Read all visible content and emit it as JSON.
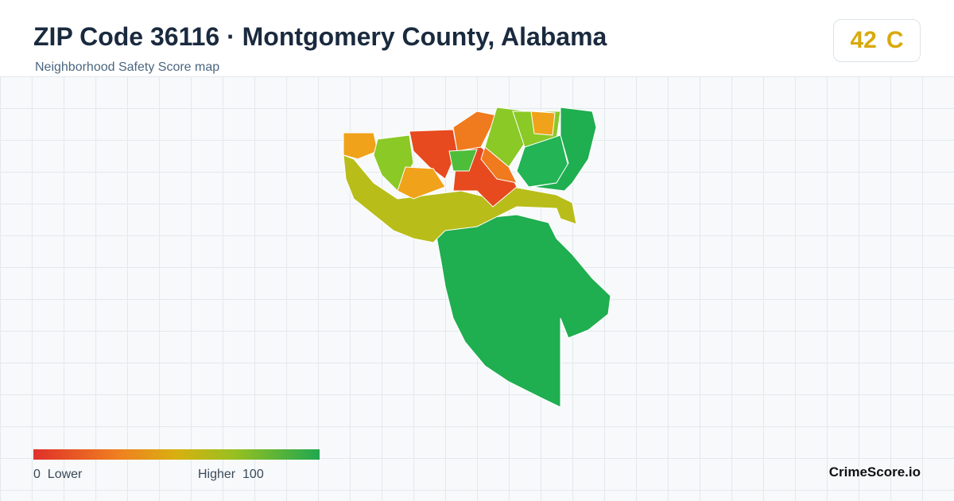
{
  "header": {
    "title": "ZIP Code 36116 · Montgomery County, Alabama",
    "subtitle": "Neighborhood Safety Score map"
  },
  "score": {
    "value": 42,
    "grade": "C"
  },
  "legend": {
    "min": 0,
    "min_label": "Lower",
    "max_label": "Higher",
    "max": 100
  },
  "brand": "CrimeScore.io"
}
